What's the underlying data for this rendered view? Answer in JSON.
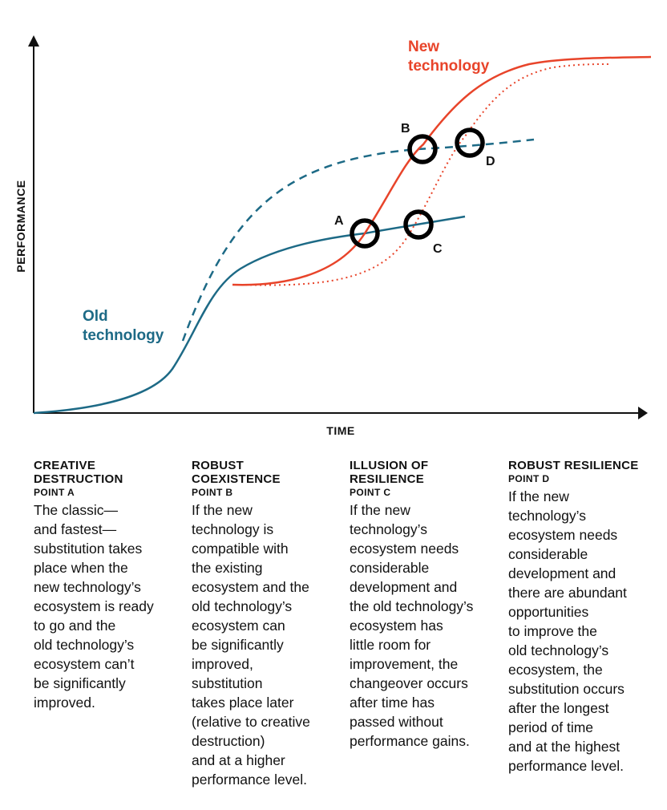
{
  "diagram": {
    "y_axis_label": "PERFORMANCE",
    "x_axis_label": "TIME",
    "old_label_line1": "Old",
    "old_label_line2": "technology",
    "new_label_line1": "New",
    "new_label_line2": "technology",
    "points": {
      "a": "A",
      "b": "B",
      "c": "C",
      "d": "D"
    },
    "colors": {
      "old": "#1d6a86",
      "new": "#e8442a",
      "marker": "#000000",
      "axis": "#111111"
    }
  },
  "columns": [
    {
      "heading": "CREATIVE DESTRUCTION",
      "point": "POINT A",
      "text": "The classic—\nand fastest—\nsubstitution takes\nplace when the\nnew technology’s\necosystem is ready\nto go and the\nold technology’s\necosystem can’t\nbe significantly\nimproved."
    },
    {
      "heading": "ROBUST COEXISTENCE",
      "point": "POINT B",
      "text": "If the new\ntechnology is\ncompatible with\nthe existing\necosystem and the\nold technology’s\necosystem can\nbe significantly\nimproved,\nsubstitution\ntakes place later\n(relative to creative\ndestruction)\nand at a higher\nperformance level."
    },
    {
      "heading": "ILLUSION OF RESILIENCE",
      "point": "POINT C",
      "text": "If the new\ntechnology’s\necosystem needs\nconsiderable\ndevelopment and\nthe old technology’s\necosystem has\nlittle room for\nimprovement, the\nchangeover occurs\nafter time has\npassed without\nperformance gains."
    },
    {
      "heading": "ROBUST RESILIENCE",
      "point": "POINT D",
      "text": "If the new\ntechnology’s\necosystem needs\nconsiderable\ndevelopment and\nthere are abundant\nopportunities\nto improve the\nold technology’s\necosystem, the\nsubstitution occurs\nafter the longest\nperiod of time\nand at the highest\nperformance level."
    }
  ]
}
